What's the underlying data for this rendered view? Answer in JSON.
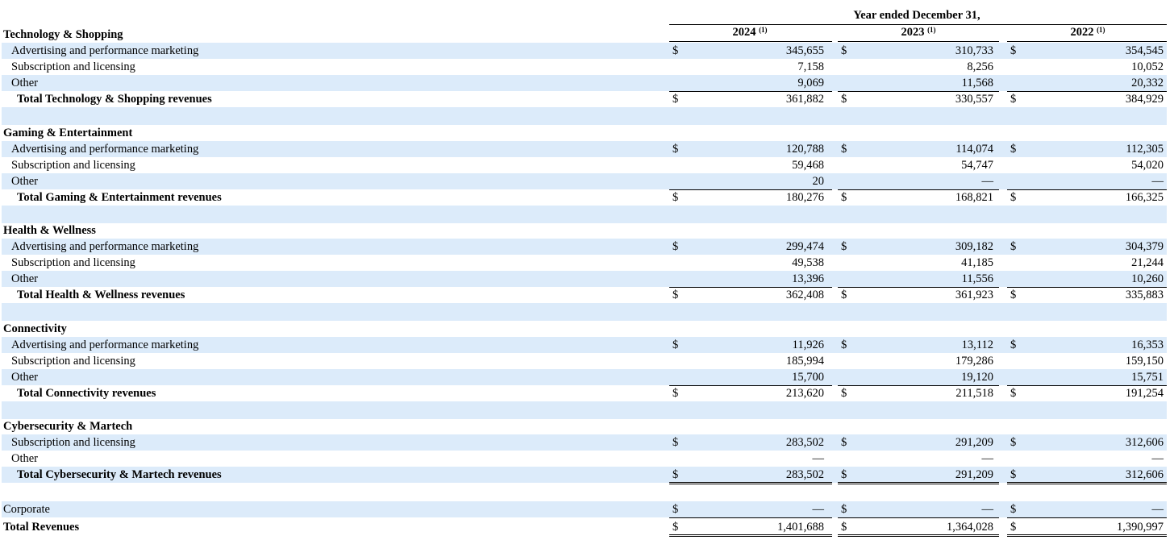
{
  "header": {
    "period": "Year ended December 31,",
    "years": [
      {
        "year": "2024",
        "note": "(1)"
      },
      {
        "year": "2023",
        "note": "(1)"
      },
      {
        "year": "2022",
        "note": "(1)"
      }
    ]
  },
  "currency": "$",
  "segments": [
    {
      "title": "Technology & Shopping",
      "lines": [
        {
          "label": "Advertising and performance marketing",
          "values": [
            "345,655",
            "310,733",
            "354,545"
          ]
        },
        {
          "label": "Subscription and licensing",
          "values": [
            "7,158",
            "8,256",
            "10,052"
          ]
        },
        {
          "label": "Other",
          "values": [
            "9,069",
            "11,568",
            "20,332"
          ]
        }
      ],
      "total": {
        "label": "Total Technology & Shopping revenues",
        "values": [
          "361,882",
          "330,557",
          "384,929"
        ]
      }
    },
    {
      "title": "Gaming & Entertainment",
      "lines": [
        {
          "label": "Advertising and performance marketing",
          "values": [
            "120,788",
            "114,074",
            "112,305"
          ]
        },
        {
          "label": "Subscription and licensing",
          "values": [
            "59,468",
            "54,747",
            "54,020"
          ]
        },
        {
          "label": "Other",
          "values": [
            "20",
            "—",
            "—"
          ]
        }
      ],
      "total": {
        "label": "Total Gaming & Entertainment revenues",
        "values": [
          "180,276",
          "168,821",
          "166,325"
        ]
      }
    },
    {
      "title": "Health & Wellness",
      "lines": [
        {
          "label": "Advertising and performance marketing",
          "values": [
            "299,474",
            "309,182",
            "304,379"
          ]
        },
        {
          "label": "Subscription and licensing",
          "values": [
            "49,538",
            "41,185",
            "21,244"
          ]
        },
        {
          "label": "Other",
          "values": [
            "13,396",
            "11,556",
            "10,260"
          ]
        }
      ],
      "total": {
        "label": "Total Health & Wellness revenues",
        "values": [
          "362,408",
          "361,923",
          "335,883"
        ]
      }
    },
    {
      "title": "Connectivity",
      "lines": [
        {
          "label": "Advertising and performance marketing",
          "values": [
            "11,926",
            "13,112",
            "16,353"
          ]
        },
        {
          "label": "Subscription and licensing",
          "values": [
            "185,994",
            "179,286",
            "159,150"
          ]
        },
        {
          "label": "Other",
          "values": [
            "15,700",
            "19,120",
            "15,751"
          ]
        }
      ],
      "total": {
        "label": "Total Connectivity revenues",
        "values": [
          "213,620",
          "211,518",
          "191,254"
        ]
      }
    },
    {
      "title": "Cybersecurity & Martech",
      "lines": [
        {
          "label": "Subscription and licensing",
          "values": [
            "283,502",
            "291,209",
            "312,606"
          ]
        },
        {
          "label": "Other",
          "values": [
            "—",
            "—",
            "—"
          ]
        }
      ],
      "total": {
        "label": "Total Cybersecurity & Martech revenues",
        "values": [
          "283,502",
          "291,209",
          "312,606"
        ]
      }
    }
  ],
  "corporate": {
    "label": "Corporate",
    "values": [
      "—",
      "—",
      "—"
    ]
  },
  "grand_total": {
    "label": "Total Revenues",
    "values": [
      "1,401,688",
      "1,364,028",
      "1,390,997"
    ]
  },
  "colors": {
    "row_shade": "#dcebfa"
  }
}
